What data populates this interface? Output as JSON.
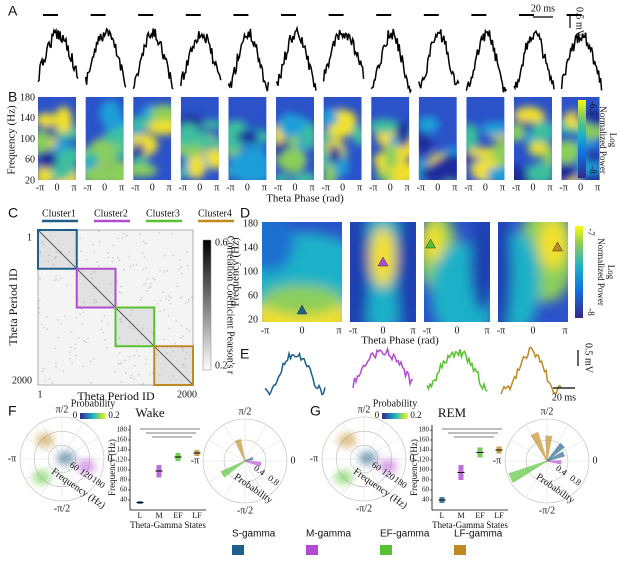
{
  "panel_a": {
    "label": "A",
    "time_scale": "20 ms",
    "voltage_scale": "0.5 mV"
  },
  "panel_b": {
    "label": "B",
    "y_label": "Frequency (Hz)",
    "y_ticks": [
      "180",
      "140",
      "100",
      "60",
      "20"
    ],
    "x_ticks": [
      "-π",
      "0",
      "π"
    ],
    "x_label": "Theta Phase (rad)",
    "colorbar": {
      "max": "-6.5",
      "min": "-8",
      "title": "Normalized Power",
      "scale": "Log"
    }
  },
  "panel_c": {
    "label": "C",
    "clusters": [
      {
        "name": "Cluster1",
        "color": "#1f5f8b"
      },
      {
        "name": "Cluster2",
        "color": "#b24bd1"
      },
      {
        "name": "Cluster3",
        "color": "#56c232"
      },
      {
        "name": "Cluster4",
        "color": "#c08a22"
      }
    ],
    "y_label": "Theta Period ID",
    "x_label": "Theta Period ID",
    "ticks": [
      "1",
      "2000"
    ],
    "colorbar": {
      "max": "0.6",
      "min": "0.2",
      "title": "Correlation Coefficient Pearson's r"
    }
  },
  "panel_d": {
    "label": "D",
    "y_label": "Frequency (Hz)",
    "y_ticks": [
      "180",
      "140",
      "100",
      "60",
      "20"
    ],
    "x_ticks": [
      "-π",
      "0",
      "π"
    ],
    "x_label": "Theta Phase (rad)",
    "colorbar": {
      "max": "-7",
      "min": "-8",
      "title": "Normalized Power",
      "scale": "Log"
    }
  },
  "panel_e": {
    "label": "E",
    "voltage_scale": "0.5 mV",
    "time_scale": "20 ms"
  },
  "panel_f": {
    "label": "F",
    "state": "Wake",
    "phase_ticks": [
      "π/2",
      "-π",
      "0",
      "-π/2"
    ],
    "probability_label": "Probability",
    "probability_ticks": [
      "0",
      "0.2"
    ],
    "radial_ticks": [
      "60",
      "120",
      "180"
    ],
    "radial_label": "Frequency (Hz)",
    "box_plot": {
      "y_label": "Frequency (Hz)",
      "x_label": "Theta-Gamma States",
      "categories": [
        "L",
        "M",
        "EF",
        "LF"
      ],
      "ylim": [
        20,
        190
      ],
      "yticks": [
        40,
        60,
        80,
        100,
        120,
        140,
        160,
        180
      ],
      "medians": [
        35,
        98,
        126,
        134
      ],
      "lower": [
        32,
        85,
        118,
        128
      ],
      "upper": [
        38,
        110,
        134,
        140
      ]
    },
    "rose_ticks": [
      "0.4",
      "0.8"
    ],
    "rose_label": "Probability"
  },
  "panel_g": {
    "label": "G",
    "state": "REM",
    "phase_ticks": [
      "π/2",
      "-π",
      "0",
      "-π/2"
    ],
    "probability_label": "Probability",
    "probability_ticks": [
      "0",
      "0.2"
    ],
    "radial_ticks": [
      "60",
      "120",
      "180"
    ],
    "radial_label": "Frequency (Hz)",
    "box_plot": {
      "y_label": "Frequency (Hz)",
      "x_label": "Theta-Gamma States",
      "categories": [
        "L",
        "M",
        "EF",
        "LF"
      ],
      "ylim": [
        20,
        190
      ],
      "yticks": [
        40,
        60,
        80,
        100,
        120,
        140,
        160,
        180
      ],
      "medians": [
        40,
        95,
        135,
        140
      ],
      "lower": [
        34,
        80,
        125,
        133
      ],
      "upper": [
        46,
        110,
        145,
        147
      ]
    },
    "rose_ticks": [
      "0.4",
      "0.8"
    ],
    "rose_label": "Probability"
  },
  "legend": [
    {
      "name": "S-gamma",
      "color": "#1f5f8b"
    },
    {
      "name": "M-gamma",
      "color": "#b24bd1"
    },
    {
      "name": "EF-gamma",
      "color": "#56c232"
    },
    {
      "name": "LF-gamma",
      "color": "#c08a22"
    }
  ]
}
